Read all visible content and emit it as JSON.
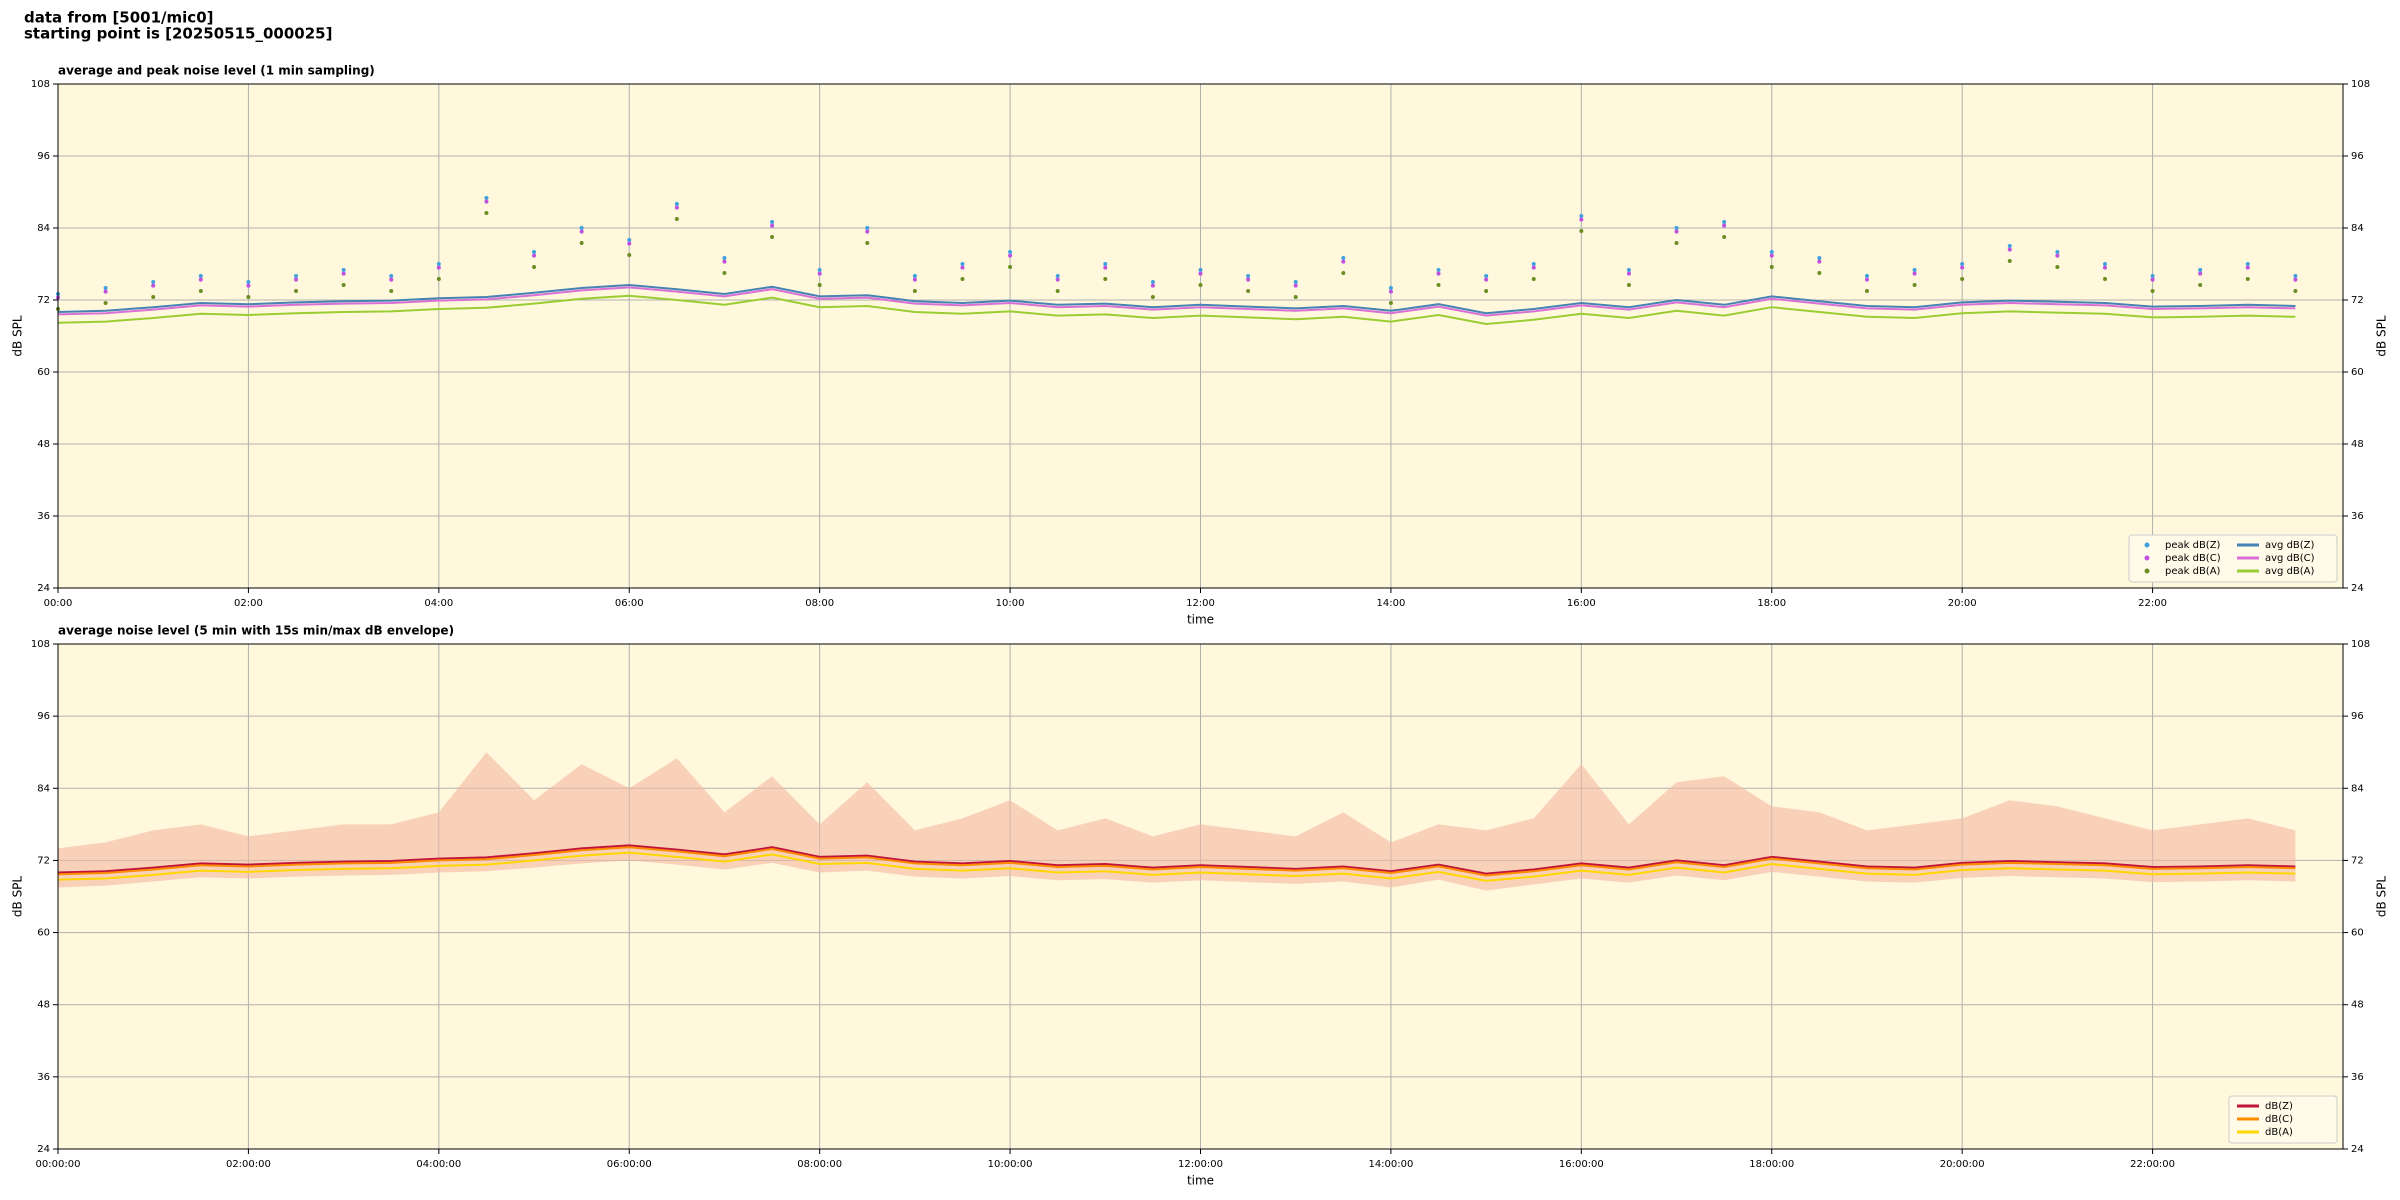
{
  "header": {
    "lines": [
      "data from [5001/mic0]",
      "starting point is [20250515_000025]"
    ]
  },
  "chart_data": [
    {
      "type": "line",
      "title": "average and peak noise level (1 min sampling)",
      "x_label": "time",
      "y_label": "dB SPL",
      "background": "#fff8dc",
      "grid": true,
      "legend": "lower right",
      "legend_columns": 2,
      "xlim": [
        "00:00",
        "24:00"
      ],
      "xticks": [
        "00:00",
        "02:00",
        "04:00",
        "06:00",
        "08:00",
        "10:00",
        "12:00",
        "14:00",
        "16:00",
        "18:00",
        "20:00",
        "22:00"
      ],
      "ylim": [
        24,
        108
      ],
      "yticks": [
        24,
        36,
        48,
        60,
        72,
        84,
        96,
        108
      ],
      "x": [
        "00:00",
        "00:30",
        "01:00",
        "01:30",
        "02:00",
        "02:30",
        "03:00",
        "03:30",
        "04:00",
        "04:30",
        "05:00",
        "05:30",
        "06:00",
        "06:30",
        "07:00",
        "07:30",
        "08:00",
        "08:30",
        "09:00",
        "09:30",
        "10:00",
        "10:30",
        "11:00",
        "11:30",
        "12:00",
        "12:30",
        "13:00",
        "13:30",
        "14:00",
        "14:30",
        "15:00",
        "15:30",
        "16:00",
        "16:30",
        "17:00",
        "17:30",
        "18:00",
        "18:30",
        "19:00",
        "19:30",
        "20:00",
        "20:30",
        "21:00",
        "21:30",
        "22:00",
        "22:30",
        "23:00",
        "23:30"
      ],
      "series": [
        {
          "name": "peak dB(Z)",
          "kind": "scatter",
          "color": "#3fa0e0",
          "values": [
            73,
            74,
            75,
            76,
            75,
            76,
            77,
            76,
            78,
            89,
            80,
            84,
            82,
            88,
            79,
            85,
            77,
            84,
            76,
            78,
            80,
            76,
            78,
            75,
            77,
            76,
            75,
            79,
            74,
            77,
            76,
            78,
            86,
            77,
            84,
            85,
            80,
            79,
            76,
            77,
            78,
            81,
            80,
            78,
            76,
            77,
            78,
            76
          ]
        },
        {
          "name": "peak dB(C)",
          "kind": "scatter",
          "color": "#c050e0",
          "values": [
            72.4,
            73.4,
            74.4,
            75.4,
            74.4,
            75.4,
            76.4,
            75.4,
            77.4,
            88.4,
            79.4,
            83.4,
            81.4,
            87.4,
            78.4,
            84.4,
            76.4,
            83.4,
            75.4,
            77.4,
            79.4,
            75.4,
            77.4,
            74.4,
            76.4,
            75.4,
            74.4,
            78.4,
            73.4,
            76.4,
            75.4,
            77.4,
            85.4,
            76.4,
            83.4,
            84.4,
            79.4,
            78.4,
            75.4,
            76.4,
            77.4,
            80.4,
            79.4,
            77.4,
            75.4,
            76.4,
            77.4,
            75.4
          ]
        },
        {
          "name": "peak dB(A)",
          "kind": "scatter",
          "color": "#6b8e23",
          "values": [
            70.5,
            71.5,
            72.5,
            73.5,
            72.5,
            73.5,
            74.5,
            73.5,
            75.5,
            86.5,
            77.5,
            81.5,
            79.5,
            85.5,
            76.5,
            82.5,
            74.5,
            81.5,
            73.5,
            75.5,
            77.5,
            73.5,
            75.5,
            72.5,
            74.5,
            73.5,
            72.5,
            76.5,
            71.5,
            74.5,
            73.5,
            75.5,
            83.5,
            74.5,
            81.5,
            82.5,
            77.5,
            76.5,
            73.5,
            74.5,
            75.5,
            78.5,
            77.5,
            75.5,
            73.5,
            74.5,
            75.5,
            73.5
          ]
        },
        {
          "name": "avg dB(Z)",
          "kind": "line",
          "color": "#4682b4",
          "values": [
            70.0,
            70.2,
            70.8,
            71.5,
            71.3,
            71.6,
            71.8,
            71.9,
            72.3,
            72.5,
            73.2,
            74.0,
            74.5,
            73.8,
            73.0,
            74.2,
            72.6,
            72.8,
            71.8,
            71.5,
            71.9,
            71.2,
            71.4,
            70.8,
            71.2,
            70.9,
            70.6,
            71.0,
            70.2,
            71.3,
            69.8,
            70.5,
            71.5,
            70.8,
            72.0,
            71.2,
            72.6,
            71.8,
            71.0,
            70.8,
            71.6,
            71.9,
            71.7,
            71.5,
            70.9,
            71.0,
            71.2,
            71.0
          ]
        },
        {
          "name": "avg dB(C)",
          "kind": "line",
          "color": "#da70d6",
          "values": [
            69.6,
            69.8,
            70.4,
            71.1,
            70.9,
            71.2,
            71.4,
            71.5,
            71.9,
            72.1,
            72.8,
            73.6,
            74.1,
            73.4,
            72.6,
            73.8,
            72.2,
            72.4,
            71.4,
            71.1,
            71.5,
            70.8,
            71.0,
            70.4,
            70.8,
            70.5,
            70.2,
            70.6,
            69.8,
            70.9,
            69.4,
            70.1,
            71.1,
            70.4,
            71.6,
            70.8,
            72.2,
            71.4,
            70.6,
            70.4,
            71.2,
            71.5,
            71.3,
            71.1,
            70.5,
            70.6,
            70.8,
            70.6
          ]
        },
        {
          "name": "avg dB(A)",
          "kind": "line",
          "color": "#9acd32",
          "values": [
            68.2,
            68.4,
            69.0,
            69.7,
            69.5,
            69.8,
            70.0,
            70.1,
            70.5,
            70.7,
            71.4,
            72.2,
            72.7,
            72.0,
            71.2,
            72.4,
            70.8,
            71.0,
            70.0,
            69.7,
            70.1,
            69.4,
            69.6,
            69.0,
            69.4,
            69.1,
            68.8,
            69.2,
            68.4,
            69.5,
            68.0,
            68.7,
            69.7,
            69.0,
            70.2,
            69.4,
            70.8,
            70.0,
            69.2,
            69.0,
            69.8,
            70.1,
            69.9,
            69.7,
            69.1,
            69.2,
            69.4,
            69.2
          ]
        }
      ]
    },
    {
      "type": "line",
      "title": "average noise level (5 min with 15s min/max dB envelope)",
      "x_label": "time",
      "y_label": "dB SPL",
      "background": "#fff8dc",
      "grid": true,
      "legend": "lower right",
      "legend_columns": 1,
      "xlim": [
        "00:00:00",
        "24:00:00"
      ],
      "xticks": [
        "00:00:00",
        "02:00:00",
        "04:00:00",
        "06:00:00",
        "08:00:00",
        "10:00:00",
        "12:00:00",
        "14:00:00",
        "16:00:00",
        "18:00:00",
        "20:00:00",
        "22:00:00"
      ],
      "ylim": [
        24,
        108
      ],
      "yticks": [
        24,
        36,
        48,
        60,
        72,
        84,
        96,
        108
      ],
      "x": [
        "00:00:00",
        "00:30:00",
        "01:00:00",
        "01:30:00",
        "02:00:00",
        "02:30:00",
        "03:00:00",
        "03:30:00",
        "04:00:00",
        "04:30:00",
        "05:00:00",
        "05:30:00",
        "06:00:00",
        "06:30:00",
        "07:00:00",
        "07:30:00",
        "08:00:00",
        "08:30:00",
        "09:00:00",
        "09:30:00",
        "10:00:00",
        "10:30:00",
        "11:00:00",
        "11:30:00",
        "12:00:00",
        "12:30:00",
        "13:00:00",
        "13:30:00",
        "14:00:00",
        "14:30:00",
        "15:00:00",
        "15:30:00",
        "16:00:00",
        "16:30:00",
        "17:00:00",
        "17:30:00",
        "18:00:00",
        "18:30:00",
        "19:00:00",
        "19:30:00",
        "20:00:00",
        "20:30:00",
        "21:00:00",
        "21:30:00",
        "22:00:00",
        "22:30:00",
        "23:00:00",
        "23:30:00"
      ],
      "envelope": {
        "color": "#f4b8a0",
        "min": [
          67.5,
          67.8,
          68.5,
          69.2,
          69,
          69.3,
          69.5,
          69.6,
          70,
          70.2,
          70.8,
          71.5,
          72,
          71.3,
          70.5,
          71.6,
          70,
          70.3,
          69.3,
          69,
          69.4,
          68.7,
          68.9,
          68.3,
          68.7,
          68.4,
          68.1,
          68.5,
          67.5,
          68.8,
          67,
          68,
          69,
          68.3,
          69.5,
          68.7,
          70.1,
          69.3,
          68.5,
          68.3,
          69.1,
          69.4,
          69.2,
          69,
          68.4,
          68.5,
          68.7,
          68.5
        ],
        "max": [
          74,
          75,
          77,
          78,
          76,
          77,
          78,
          78,
          80,
          90,
          82,
          88,
          84,
          89,
          80,
          86,
          78,
          85,
          77,
          79,
          82,
          77,
          79,
          76,
          78,
          77,
          76,
          80,
          75,
          78,
          77,
          79,
          88,
          78,
          85,
          86,
          81,
          80,
          77,
          78,
          79,
          82,
          81,
          79,
          77,
          78,
          79,
          77
        ]
      },
      "series": [
        {
          "name": "dB(Z)",
          "kind": "line",
          "color": "#c0143c",
          "values": [
            70.0,
            70.2,
            70.8,
            71.5,
            71.3,
            71.6,
            71.8,
            71.9,
            72.3,
            72.5,
            73.2,
            74.0,
            74.5,
            73.8,
            73.0,
            74.2,
            72.6,
            72.8,
            71.8,
            71.5,
            71.9,
            71.2,
            71.4,
            70.8,
            71.2,
            70.9,
            70.6,
            71.0,
            70.2,
            71.3,
            69.8,
            70.5,
            71.5,
            70.8,
            72.0,
            71.2,
            72.6,
            71.8,
            71.0,
            70.8,
            71.6,
            71.9,
            71.7,
            71.5,
            70.9,
            71.0,
            71.2,
            71.0
          ]
        },
        {
          "name": "dB(C)",
          "kind": "line",
          "color": "#ff8c00",
          "values": [
            69.7,
            69.9,
            70.5,
            71.2,
            71.0,
            71.3,
            71.5,
            71.6,
            72.0,
            72.2,
            72.9,
            73.7,
            74.2,
            73.5,
            72.7,
            73.9,
            72.3,
            72.5,
            71.5,
            71.2,
            71.6,
            70.9,
            71.1,
            70.5,
            70.9,
            70.6,
            70.3,
            70.7,
            69.9,
            71.0,
            69.5,
            70.2,
            71.2,
            70.5,
            71.7,
            70.9,
            72.3,
            71.5,
            70.7,
            70.5,
            71.3,
            71.6,
            71.4,
            71.2,
            70.6,
            70.7,
            70.9,
            70.7
          ]
        },
        {
          "name": "dB(A)",
          "kind": "line",
          "color": "#ffd700",
          "values": [
            68.8,
            69.0,
            69.6,
            70.3,
            70.1,
            70.4,
            70.6,
            70.7,
            71.1,
            71.3,
            72.0,
            72.8,
            73.3,
            72.6,
            71.8,
            73.0,
            71.4,
            71.6,
            70.6,
            70.3,
            70.7,
            70.0,
            70.2,
            69.6,
            70.0,
            69.7,
            69.4,
            69.8,
            69.0,
            70.1,
            68.6,
            69.3,
            70.3,
            69.6,
            70.8,
            70.0,
            71.4,
            70.6,
            69.8,
            69.6,
            70.4,
            70.7,
            70.5,
            70.3,
            69.7,
            69.8,
            70.0,
            69.8
          ]
        }
      ]
    }
  ]
}
